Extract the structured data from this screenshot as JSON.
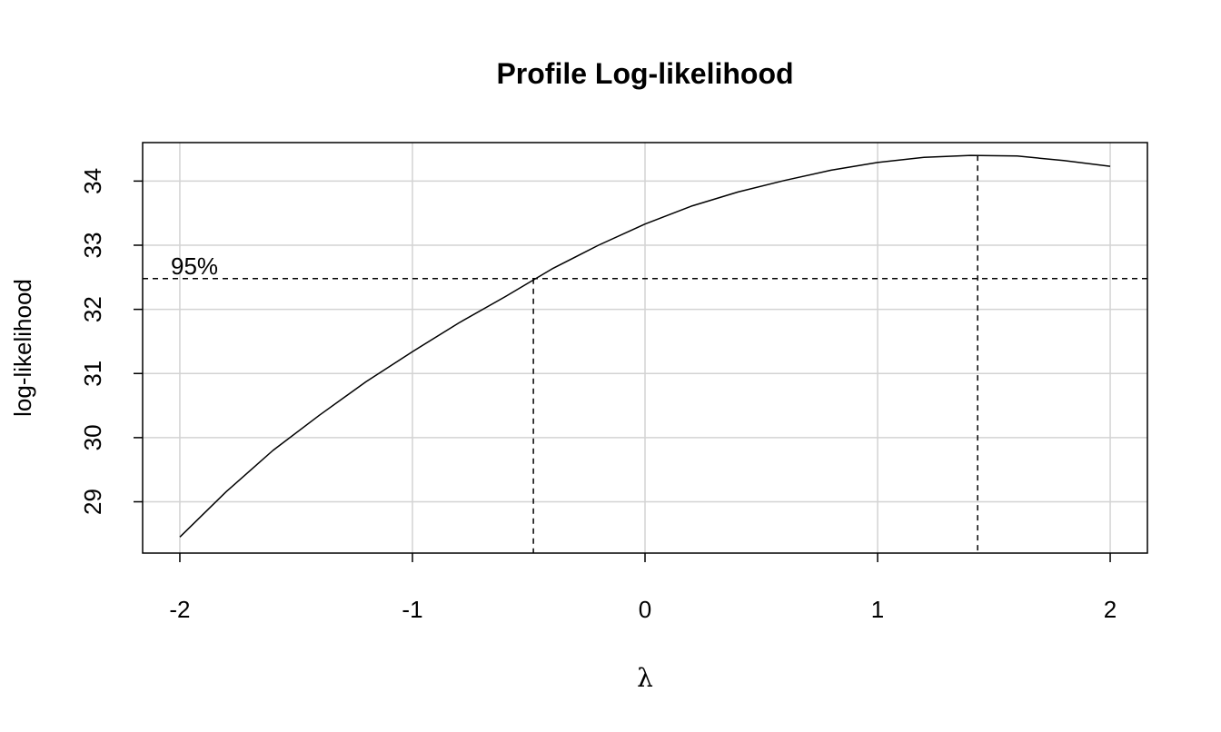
{
  "chart_data": {
    "type": "line",
    "title": "Profile Log-likelihood",
    "xlabel": "λ",
    "ylabel": "log-likelihood",
    "xlim": [
      -2.16,
      2.16
    ],
    "ylim": [
      28.2,
      34.6
    ],
    "x_ticks": [
      -2,
      -1,
      0,
      1,
      2
    ],
    "x_tick_labels": [
      "-2",
      "-1",
      "0",
      "1",
      "2"
    ],
    "y_ticks": [
      29,
      30,
      31,
      32,
      33,
      34
    ],
    "y_tick_labels": [
      "29",
      "30",
      "31",
      "32",
      "33",
      "34"
    ],
    "grid": true,
    "series": [
      {
        "x": [
          -2.0,
          -1.8,
          -1.6,
          -1.4,
          -1.2,
          -1.0,
          -0.8,
          -0.6,
          -0.4,
          -0.2,
          0.0,
          0.2,
          0.4,
          0.6,
          0.8,
          1.0,
          1.2,
          1.4,
          1.6,
          1.8,
          2.0
        ],
        "y": [
          28.45,
          29.16,
          29.8,
          30.35,
          30.87,
          31.34,
          31.79,
          32.2,
          32.63,
          33.0,
          33.33,
          33.61,
          33.83,
          34.01,
          34.17,
          34.29,
          34.37,
          34.4,
          34.39,
          34.32,
          34.23
        ]
      }
    ],
    "ci_threshold": 32.48,
    "ci_label": "95%",
    "lambda_ci_lower": -0.48,
    "lambda_hat": 1.43
  }
}
